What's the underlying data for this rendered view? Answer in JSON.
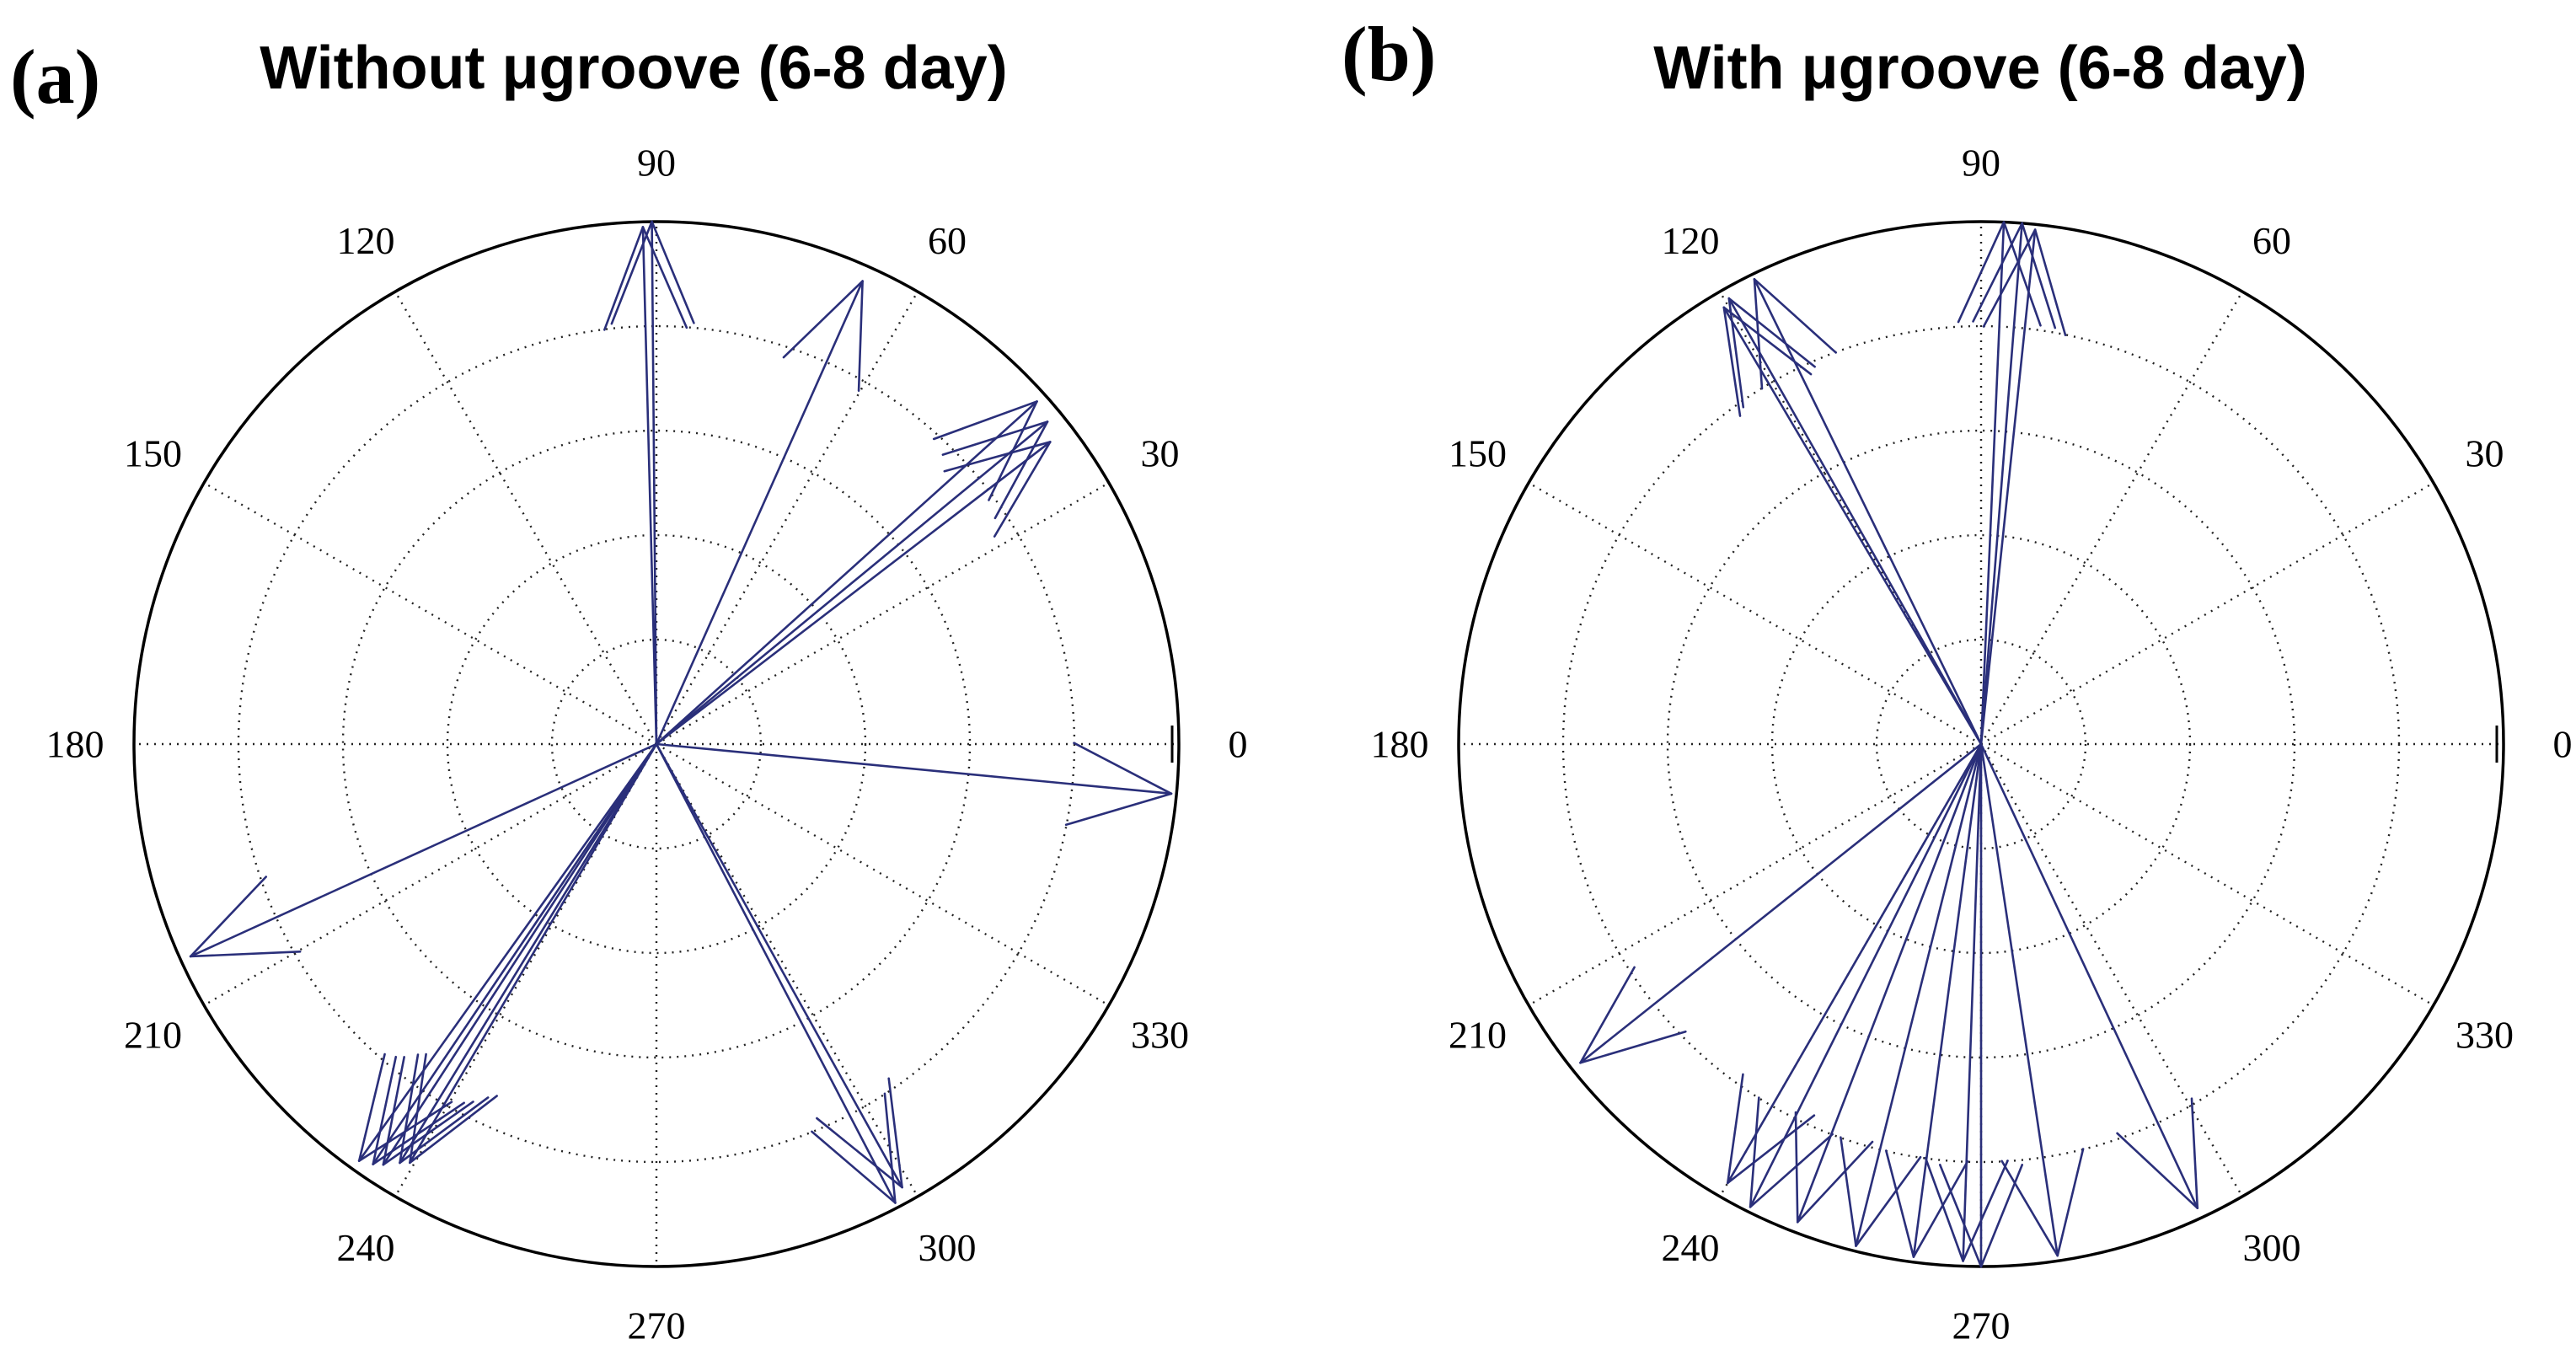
{
  "chart_data": [
    {
      "type": "compass",
      "panel_label": "(a)",
      "title": "Without μgroove (6-8 day)",
      "angle_unit": "degrees",
      "angle_ticks": [
        "0",
        "30",
        "60",
        "90",
        "120",
        "150",
        "180",
        "210",
        "240",
        "270",
        "300",
        "330"
      ],
      "radial_grid": "dotted",
      "series_color": "#2a2f7a",
      "vectors": [
        {
          "angle": 90.5,
          "magnitude": 1.0
        },
        {
          "angle": 91.5,
          "magnitude": 0.99
        },
        {
          "angle": 66,
          "magnitude": 0.97
        },
        {
          "angle": 42,
          "magnitude": 0.98
        },
        {
          "angle": 39.5,
          "magnitude": 0.97
        },
        {
          "angle": 37.5,
          "magnitude": 0.95
        },
        {
          "angle": 354.5,
          "magnitude": 0.99
        },
        {
          "angle": 204.5,
          "magnitude": 0.98
        },
        {
          "angle": 234.5,
          "magnitude": 0.98
        },
        {
          "angle": 236,
          "magnitude": 0.97
        },
        {
          "angle": 237,
          "magnitude": 0.96
        },
        {
          "angle": 238.5,
          "magnitude": 0.94
        },
        {
          "angle": 239.5,
          "magnitude": 0.93
        },
        {
          "angle": 297.5,
          "magnitude": 0.99
        },
        {
          "angle": 299,
          "magnitude": 0.97
        }
      ]
    },
    {
      "type": "compass",
      "panel_label": "(b)",
      "title": "With μgroove (6-8 day)",
      "angle_unit": "degrees",
      "angle_ticks": [
        "0",
        "30",
        "60",
        "90",
        "120",
        "150",
        "180",
        "210",
        "240",
        "270",
        "300",
        "330"
      ],
      "radial_grid": "dotted",
      "series_color": "#2a2f7a",
      "vectors": [
        {
          "angle": 84,
          "magnitude": 0.99
        },
        {
          "angle": 85.5,
          "magnitude": 1.0
        },
        {
          "angle": 87.5,
          "magnitude": 1.0
        },
        {
          "angle": 116,
          "magnitude": 0.99
        },
        {
          "angle": 119.5,
          "magnitude": 0.98
        },
        {
          "angle": 120.5,
          "magnitude": 0.97
        },
        {
          "angle": 218.5,
          "magnitude": 0.98
        },
        {
          "angle": 240,
          "magnitude": 0.97
        },
        {
          "angle": 243.5,
          "magnitude": 0.99
        },
        {
          "angle": 249,
          "magnitude": 0.98
        },
        {
          "angle": 256,
          "magnitude": 0.99
        },
        {
          "angle": 262.5,
          "magnitude": 0.99
        },
        {
          "angle": 268,
          "magnitude": 0.99
        },
        {
          "angle": 270,
          "magnitude": 1.0
        },
        {
          "angle": 278.5,
          "magnitude": 0.99
        },
        {
          "angle": 295,
          "magnitude": 0.98
        }
      ]
    }
  ]
}
